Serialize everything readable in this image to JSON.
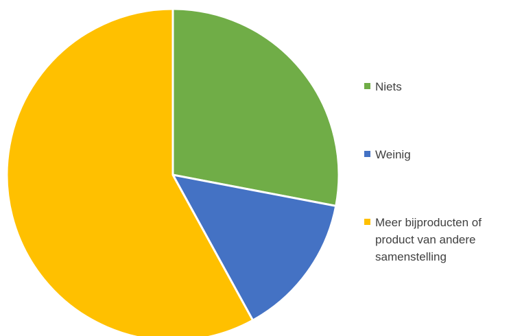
{
  "chart_data": {
    "type": "pie",
    "title": "",
    "categories": [
      "Niets",
      "Weinig",
      "Meer bijproducten of product van andere samenstelling"
    ],
    "values": [
      28,
      14,
      58
    ],
    "colors": [
      "#70AD47",
      "#4472C4",
      "#FFC000"
    ],
    "legend_position": "right"
  }
}
